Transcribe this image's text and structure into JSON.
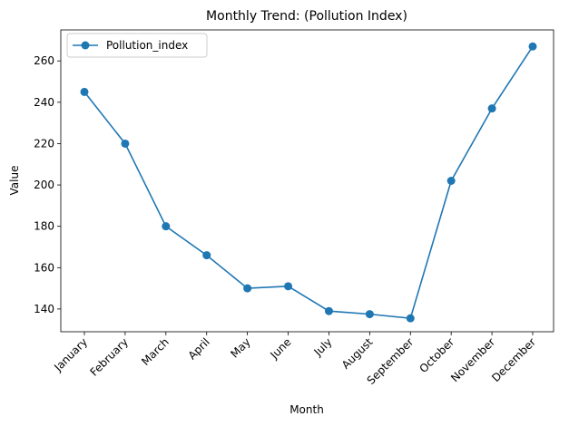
{
  "chart_data": {
    "type": "line",
    "title": "Monthly Trend: (Pollution Index)",
    "xlabel": "Month",
    "ylabel": "Value",
    "categories": [
      "January",
      "February",
      "March",
      "April",
      "May",
      "June",
      "July",
      "August",
      "September",
      "October",
      "November",
      "December"
    ],
    "series": [
      {
        "name": "Pollution_index",
        "color": "#1f77b4",
        "marker": "circle",
        "values": [
          245,
          220,
          180,
          166,
          150,
          151,
          139,
          137.5,
          135.5,
          202,
          237,
          267
        ]
      }
    ],
    "ylim": [
      129,
      275
    ],
    "yticks": [
      140,
      160,
      180,
      200,
      220,
      240,
      260
    ],
    "legend_position": "top-left",
    "grid": false,
    "xtick_rotation": 45
  }
}
